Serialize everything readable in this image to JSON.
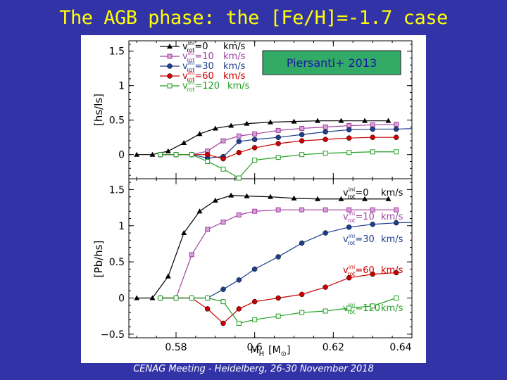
{
  "slide": {
    "title": "The AGB phase: the [Fe/H]=-1.7 case",
    "footer": "CENAG Meeting - Heidelberg, 26-30 November 2018",
    "background_color": "#3333a8",
    "title_color": "#ffff00"
  },
  "legend_items": [
    {
      "text": "=0",
      "unit": "km/s",
      "color": "#000000"
    },
    {
      "text": "=10",
      "unit": "km/s",
      "color": "#a040a0"
    },
    {
      "text": "=30",
      "unit": "km/s",
      "color": "#1e3f8c"
    },
    {
      "text": "=60",
      "unit": "km/s",
      "color": "#cc0000"
    },
    {
      "text": "=120",
      "unit": "km/s",
      "color": "#22a022"
    }
  ],
  "vrot_symbol": {
    "base": "v",
    "sup": "ini",
    "sub": "rot"
  },
  "reference_box": {
    "text": "Piersanti+ 2013",
    "fill": "#33aa66",
    "text_color": "#1a1aa0"
  },
  "chart_data": [
    {
      "type": "line",
      "ylabel": "[hs/ls]",
      "xlim": [
        0.568,
        0.64
      ],
      "ylim": [
        -0.35,
        1.65
      ],
      "yticks": [
        0,
        0.5,
        1,
        1.5
      ],
      "ytick_labels": [
        "0",
        "0.5",
        "1",
        "1.5"
      ],
      "series": [
        {
          "color": "#000000",
          "marker": "triangle",
          "x": [
            0.57,
            0.574,
            0.578,
            0.582,
            0.586,
            0.59,
            0.594,
            0.598,
            0.604,
            0.61,
            0.616,
            0.622,
            0.628,
            0.634
          ],
          "y": [
            0.0,
            0.0,
            0.05,
            0.17,
            0.3,
            0.38,
            0.42,
            0.45,
            0.47,
            0.48,
            0.49,
            0.49,
            0.49,
            0.49
          ]
        },
        {
          "color": "#a040a0",
          "marker": "square",
          "x": [
            0.576,
            0.58,
            0.584,
            0.588,
            0.592,
            0.596,
            0.6,
            0.606,
            0.612,
            0.618,
            0.624,
            0.63,
            0.636
          ],
          "y": [
            0.0,
            0.0,
            0.0,
            0.05,
            0.2,
            0.27,
            0.3,
            0.35,
            0.38,
            0.4,
            0.42,
            0.43,
            0.44
          ]
        },
        {
          "color": "#1e3f8c",
          "marker": "circle",
          "x": [
            0.576,
            0.58,
            0.584,
            0.588,
            0.592,
            0.596,
            0.6,
            0.606,
            0.612,
            0.618,
            0.624,
            0.63,
            0.636,
            0.642
          ],
          "y": [
            0.0,
            0.0,
            0.0,
            -0.05,
            -0.03,
            0.19,
            0.22,
            0.25,
            0.29,
            0.33,
            0.36,
            0.37,
            0.37,
            0.38
          ]
        },
        {
          "color": "#cc0000",
          "marker": "circle",
          "x": [
            0.576,
            0.58,
            0.584,
            0.588,
            0.592,
            0.596,
            0.6,
            0.606,
            0.612,
            0.618,
            0.624,
            0.63,
            0.636
          ],
          "y": [
            0.0,
            0.0,
            0.0,
            0.0,
            -0.06,
            0.03,
            0.1,
            0.16,
            0.2,
            0.22,
            0.24,
            0.25,
            0.25
          ]
        },
        {
          "color": "#22a022",
          "marker": "open-square",
          "x": [
            0.576,
            0.58,
            0.584,
            0.588,
            0.592,
            0.596,
            0.6,
            0.606,
            0.612,
            0.618,
            0.624,
            0.63,
            0.636
          ],
          "y": [
            0.0,
            0.0,
            0.0,
            -0.1,
            -0.21,
            -0.34,
            -0.08,
            -0.04,
            0.0,
            0.02,
            0.03,
            0.04,
            0.04
          ]
        }
      ]
    },
    {
      "type": "line",
      "ylabel": "[Pb/hs]",
      "xlabel": "M",
      "xlabel_sub": "H",
      "xlabel_unit": "[M",
      "xlabel_unit_sub": "⊙",
      "xlabel_unit_close": "]",
      "xlim": [
        0.568,
        0.64
      ],
      "ylim": [
        -0.55,
        1.65
      ],
      "xticks": [
        0.58,
        0.6,
        0.62,
        0.64
      ],
      "xtick_labels": [
        "0.58",
        "0.6",
        "0.62",
        "0.64"
      ],
      "yticks": [
        -0.5,
        0,
        0.5,
        1,
        1.5
      ],
      "ytick_labels": [
        "−0.5",
        "0",
        "0.5",
        "1",
        "1.5"
      ],
      "series": [
        {
          "label": "=0",
          "unit": "km/s",
          "color": "#000000",
          "marker": "triangle",
          "x": [
            0.57,
            0.574,
            0.578,
            0.582,
            0.586,
            0.59,
            0.594,
            0.598,
            0.604,
            0.61,
            0.616,
            0.622,
            0.628,
            0.634
          ],
          "y": [
            0.0,
            0.0,
            0.3,
            0.9,
            1.2,
            1.35,
            1.42,
            1.41,
            1.4,
            1.38,
            1.37,
            1.37,
            1.37,
            1.37
          ]
        },
        {
          "label": "=10",
          "unit": "km/s",
          "color": "#a040a0",
          "marker": "square",
          "x": [
            0.576,
            0.58,
            0.584,
            0.588,
            0.592,
            0.596,
            0.6,
            0.606,
            0.612,
            0.618,
            0.624,
            0.63,
            0.636
          ],
          "y": [
            0.0,
            0.0,
            0.6,
            0.95,
            1.05,
            1.15,
            1.2,
            1.22,
            1.22,
            1.22,
            1.22,
            1.22,
            1.22
          ]
        },
        {
          "label": "=30",
          "unit": "km/s",
          "color": "#1e3f8c",
          "marker": "circle",
          "x": [
            0.576,
            0.58,
            0.584,
            0.588,
            0.592,
            0.596,
            0.6,
            0.606,
            0.612,
            0.618,
            0.624,
            0.63,
            0.636,
            0.642
          ],
          "y": [
            0.0,
            0.0,
            0.0,
            0.0,
            0.12,
            0.25,
            0.4,
            0.57,
            0.76,
            0.9,
            0.98,
            1.02,
            1.04,
            1.05
          ]
        },
        {
          "label": "=60",
          "unit": "km/s",
          "color": "#cc0000",
          "marker": "circle",
          "x": [
            0.576,
            0.58,
            0.584,
            0.588,
            0.592,
            0.596,
            0.6,
            0.606,
            0.612,
            0.618,
            0.624,
            0.63,
            0.636
          ],
          "y": [
            0.0,
            0.0,
            0.0,
            -0.15,
            -0.35,
            -0.15,
            -0.05,
            0.0,
            0.05,
            0.15,
            0.28,
            0.33,
            0.35
          ]
        },
        {
          "label": "=120",
          "unit": "km/s",
          "color": "#22a022",
          "marker": "open-square",
          "x": [
            0.576,
            0.58,
            0.584,
            0.588,
            0.592,
            0.596,
            0.6,
            0.606,
            0.612,
            0.618,
            0.624,
            0.63,
            0.636
          ],
          "y": [
            0.0,
            0.0,
            0.0,
            0.0,
            -0.05,
            -0.35,
            -0.3,
            -0.25,
            -0.2,
            -0.18,
            -0.14,
            -0.11,
            0.0
          ]
        }
      ]
    }
  ]
}
